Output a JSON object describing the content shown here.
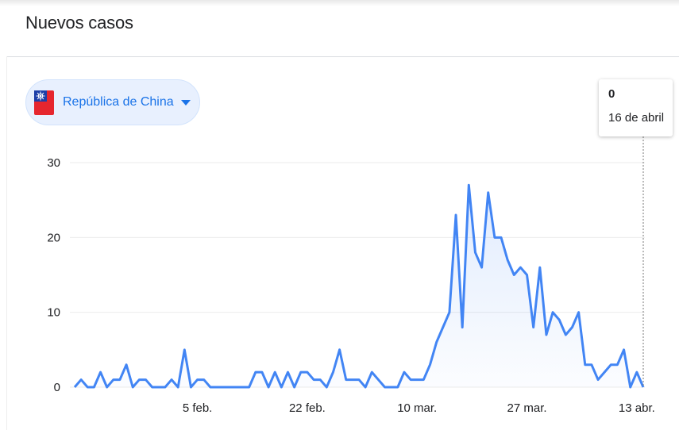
{
  "card": {
    "title": "Nuevos casos"
  },
  "region_selector": {
    "label": "República de China",
    "flag_icon": "taiwan-flag-icon"
  },
  "tooltip": {
    "value": "0",
    "date": "16 de abril"
  },
  "colors": {
    "line": "#4285f4",
    "chip_bg": "#e8f0fe",
    "chip_text": "#1a73e8"
  },
  "chart_data": {
    "type": "area",
    "title": "Nuevos casos",
    "xlabel": "",
    "ylabel": "",
    "ylim": [
      0,
      30
    ],
    "yticks": [
      0,
      10,
      20,
      30
    ],
    "x_tick_labels": [
      {
        "label": "5 feb.",
        "day_index": 19
      },
      {
        "label": "22 feb.",
        "day_index": 36
      },
      {
        "label": "10 mar.",
        "day_index": 53
      },
      {
        "label": "27 mar.",
        "day_index": 70
      },
      {
        "label": "13 abr.",
        "day_index": 87
      }
    ],
    "grid": "horizontal",
    "legend": "none",
    "series": [
      {
        "values": [
          0,
          1,
          0,
          0,
          2,
          0,
          1,
          1,
          3,
          0,
          1,
          1,
          0,
          0,
          0,
          1,
          0,
          5,
          0,
          1,
          1,
          0,
          0,
          0,
          0,
          0,
          0,
          0,
          2,
          2,
          0,
          2,
          0,
          2,
          0,
          2,
          2,
          1,
          1,
          0,
          2,
          5,
          1,
          1,
          1,
          0,
          2,
          1,
          0,
          0,
          0,
          2,
          1,
          1,
          1,
          3,
          6,
          8,
          10,
          23,
          8,
          27,
          18,
          16,
          26,
          20,
          20,
          17,
          15,
          16,
          15,
          8,
          16,
          7,
          10,
          9,
          7,
          8,
          10,
          3,
          3,
          1,
          2,
          3,
          3,
          5,
          0,
          2,
          0
        ]
      }
    ]
  }
}
